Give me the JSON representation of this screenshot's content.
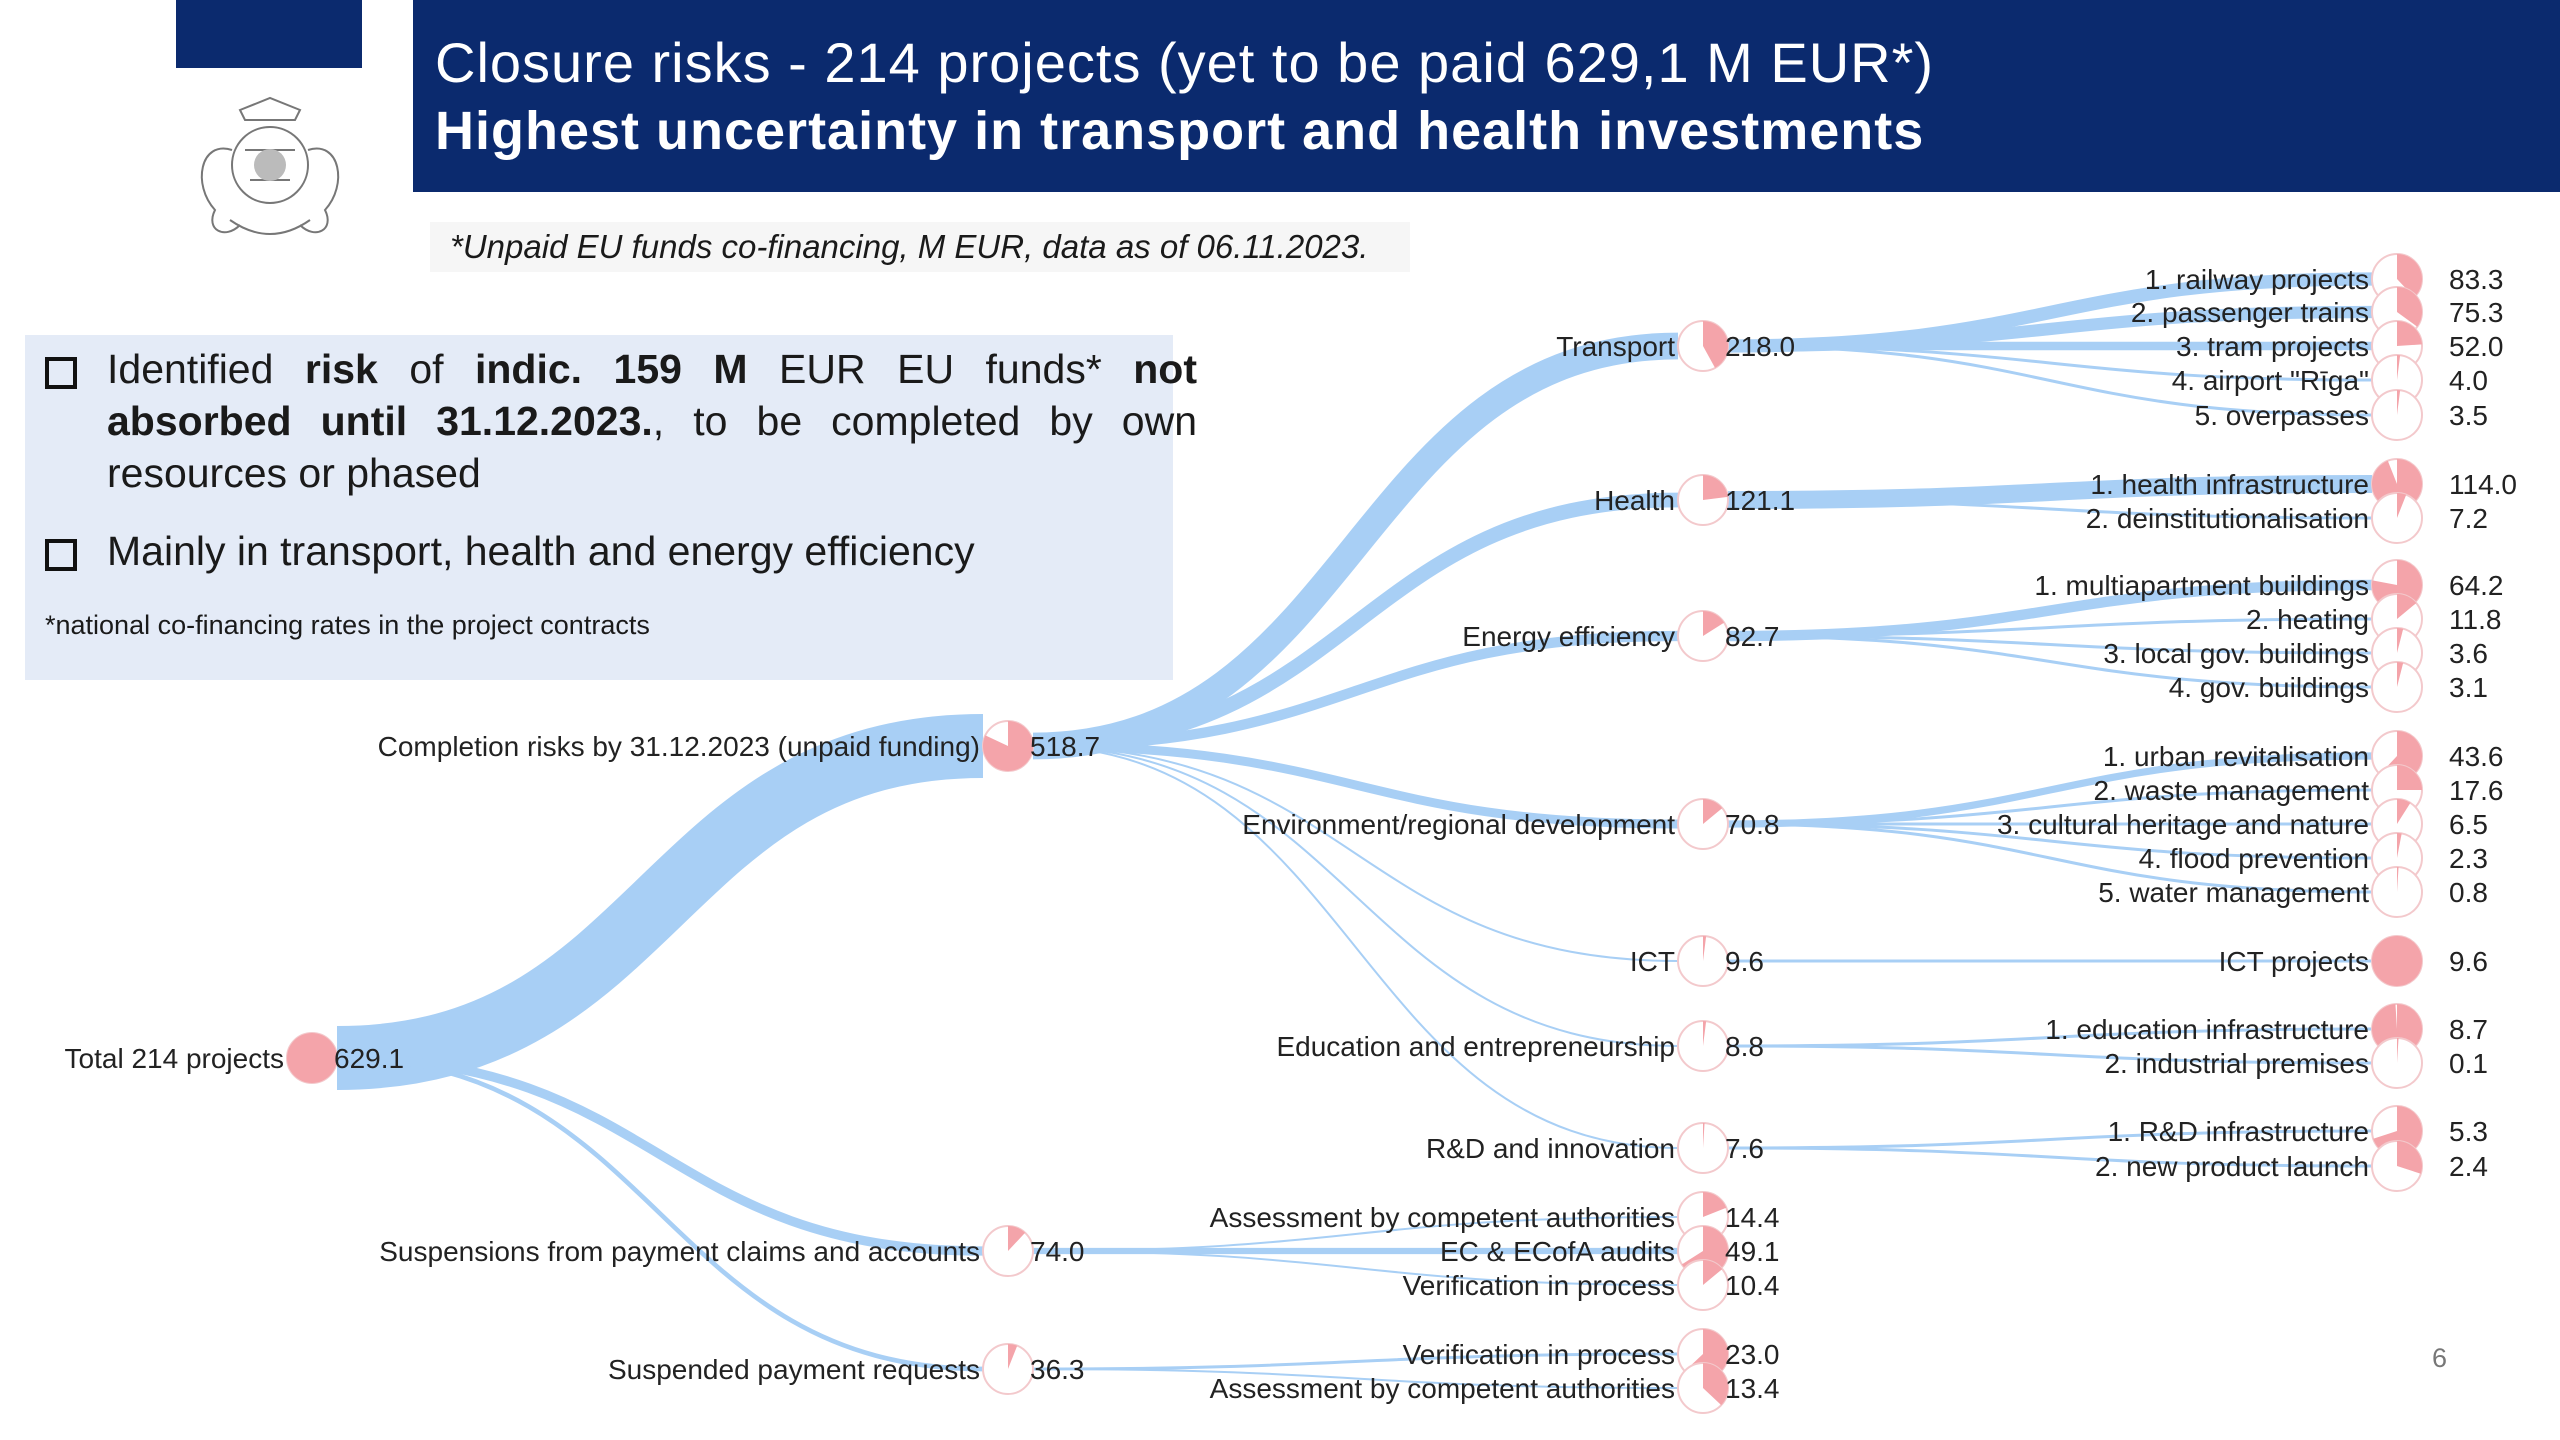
{
  "header": {
    "line1": "Closure risks - 214 projects (yet to be paid 629,1 M EUR*)",
    "line2": "Highest uncertainty in transport and health investments"
  },
  "note": "*Unpaid EU funds co-financing, M EUR, data as of 06.11.2023.",
  "info": {
    "bullet1_parts": [
      "Identified ",
      "risk",
      " of ",
      "indic. 159 M",
      " EUR EU funds* ",
      "not absorbed until 31.12.2023.",
      ", to be completed by own resources or phased"
    ],
    "bullet2": "Mainly in transport, health and energy efficiency",
    "footnote": "*national co-financing rates in the project contracts"
  },
  "page_number": "6",
  "colors": {
    "navy": "#0b2a6e",
    "link": "#a8cff5",
    "pie": "#f4a4aa",
    "pie_ring": "#f3c9cc",
    "box": "#e4ebf7"
  },
  "tree": {
    "root": {
      "label": "Total 214 projects",
      "value": "629.1",
      "share": 1.0
    },
    "level1": [
      {
        "label": "Completion risks by 31.12.2023 (unpaid funding)",
        "value": "518.7",
        "share": 0.82
      },
      {
        "label": "Suspensions from payment claims and accounts",
        "value": "74.0",
        "share": 0.12
      },
      {
        "label": "Suspended payment requests",
        "value": "36.3",
        "share": 0.06
      }
    ],
    "level2": [
      {
        "label": "Transport",
        "value": "218.0",
        "share": 0.42
      },
      {
        "label": "Health",
        "value": "121.1",
        "share": 0.23
      },
      {
        "label": "Energy efficiency",
        "value": "82.7",
        "share": 0.16
      },
      {
        "label": "Environment/regional development",
        "value": "70.8",
        "share": 0.14
      },
      {
        "label": "ICT",
        "value": "9.6",
        "share": 0.02
      },
      {
        "label": "Education and entrepreneurship",
        "value": "8.8",
        "share": 0.02
      },
      {
        "label": "R&D and innovation",
        "value": "7.6",
        "share": 0.01
      },
      {
        "label": "Assessment by competent authorities",
        "value": "14.4",
        "share": 0.19
      },
      {
        "label": "EC & ECofA audits",
        "value": "49.1",
        "share": 0.66
      },
      {
        "label": "Verification in process",
        "value": "10.4",
        "share": 0.14
      },
      {
        "label": "Verification in process",
        "value": "23.0",
        "share": 0.63
      },
      {
        "label": "Assessment by competent authorities",
        "value": "13.4",
        "share": 0.37
      }
    ],
    "level3": [
      {
        "label": "1. railway projects",
        "value": "83.3",
        "share": 0.38
      },
      {
        "label": "2. passenger trains",
        "value": "75.3",
        "share": 0.35
      },
      {
        "label": "3. tram projects",
        "value": "52.0",
        "share": 0.24
      },
      {
        "label": "4. airport \"Rīga\"",
        "value": "4.0",
        "share": 0.02
      },
      {
        "label": "5. overpasses",
        "value": "3.5",
        "share": 0.02
      },
      {
        "label": "1. health infrastructure",
        "value": "114.0",
        "share": 0.94
      },
      {
        "label": "2. deinstitutionalisation",
        "value": "7.2",
        "share": 0.06
      },
      {
        "label": "1. multiapartment buildings",
        "value": "64.2",
        "share": 0.78
      },
      {
        "label": "2. heating",
        "value": "11.8",
        "share": 0.14
      },
      {
        "label": "3. local gov. buildings",
        "value": "3.6",
        "share": 0.04
      },
      {
        "label": "4. gov. buildings",
        "value": "3.1",
        "share": 0.04
      },
      {
        "label": "1. urban revitalisation",
        "value": "43.6",
        "share": 0.62
      },
      {
        "label": "2. waste management",
        "value": "17.6",
        "share": 0.25
      },
      {
        "label": "3. cultural heritage and nature",
        "value": "6.5",
        "share": 0.09
      },
      {
        "label": "4. flood prevention",
        "value": "2.3",
        "share": 0.03
      },
      {
        "label": "5. water management",
        "value": "0.8",
        "share": 0.01
      },
      {
        "label": "ICT projects",
        "value": "9.6",
        "share": 1.0
      },
      {
        "label": "1. education infrastructure",
        "value": "8.7",
        "share": 0.99
      },
      {
        "label": "2. industrial premises",
        "value": "0.1",
        "share": 0.01
      },
      {
        "label": "1. R&D infrastructure",
        "value": "5.3",
        "share": 0.7
      },
      {
        "label": "2. new product launch",
        "value": "2.4",
        "share": 0.3
      }
    ]
  }
}
